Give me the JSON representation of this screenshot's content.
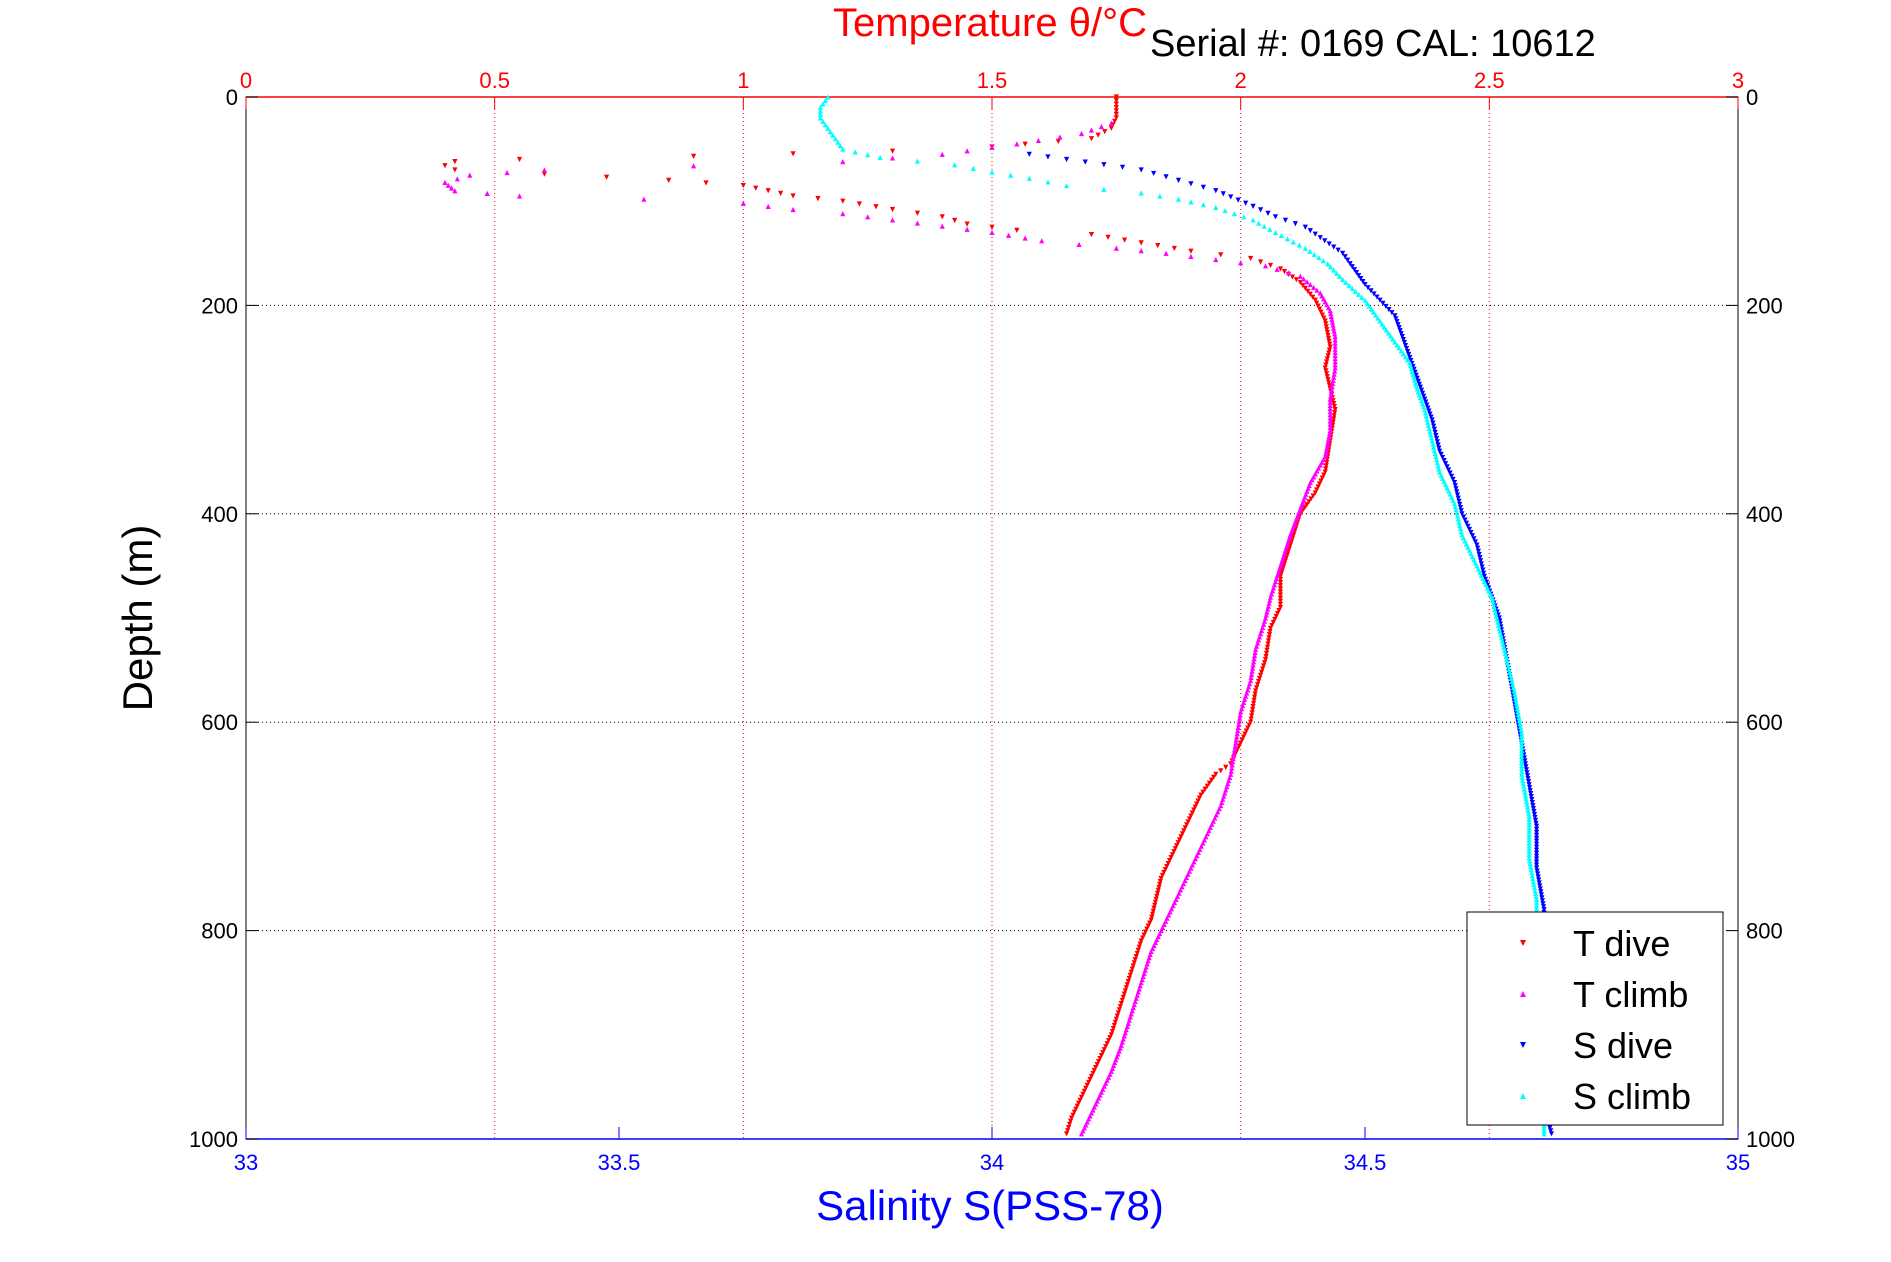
{
  "chart_data": {
    "type": "scatter",
    "title": "Temperature θ/°C",
    "annotation": "Serial #: 0169 CAL: 10612",
    "xlabel_bottom": "Salinity S(PSS-78)",
    "ylabel": "Depth (m)",
    "x_top": {
      "label": "Temperature θ/°C",
      "range": [
        0,
        3
      ],
      "ticks": [
        "0",
        "0.5",
        "1",
        "1.5",
        "2",
        "2.5",
        "3"
      ],
      "color": "#ff0000"
    },
    "x_bottom": {
      "label": "Salinity S(PSS-78)",
      "range": [
        33,
        35
      ],
      "ticks": [
        "33",
        "33.5",
        "34",
        "34.5",
        "35"
      ],
      "color": "#0000ff"
    },
    "y": {
      "range": [
        0,
        1000
      ],
      "reversed": true,
      "ticks": [
        "0",
        "200",
        "400",
        "600",
        "800",
        "1000"
      ]
    },
    "grid": true,
    "legend_placement": "bottom-right",
    "series": [
      {
        "name": "T dive",
        "axis": "temperature",
        "color": "#ff0000",
        "marker": "triangle-down",
        "points": [
          [
            1.75,
            0
          ],
          [
            1.75,
            10
          ],
          [
            1.75,
            20
          ],
          [
            1.74,
            30
          ],
          [
            1.7,
            40
          ],
          [
            1.5,
            48
          ],
          [
            1.3,
            52
          ],
          [
            0.9,
            57
          ],
          [
            0.55,
            60
          ],
          [
            0.42,
            62
          ],
          [
            0.4,
            66
          ],
          [
            0.42,
            70
          ],
          [
            0.6,
            74
          ],
          [
            0.85,
            80
          ],
          [
            1.0,
            85
          ],
          [
            1.05,
            90
          ],
          [
            1.1,
            95
          ],
          [
            1.2,
            100
          ],
          [
            1.3,
            108
          ],
          [
            1.4,
            115
          ],
          [
            1.45,
            122
          ],
          [
            1.55,
            128
          ],
          [
            1.7,
            132
          ],
          [
            1.8,
            140
          ],
          [
            1.9,
            148
          ],
          [
            2.02,
            155
          ],
          [
            2.08,
            165
          ],
          [
            2.12,
            178
          ],
          [
            2.15,
            195
          ],
          [
            2.17,
            215
          ],
          [
            2.18,
            240
          ],
          [
            2.17,
            260
          ],
          [
            2.18,
            280
          ],
          [
            2.19,
            300
          ],
          [
            2.18,
            330
          ],
          [
            2.17,
            360
          ],
          [
            2.15,
            380
          ],
          [
            2.12,
            400
          ],
          [
            2.1,
            430
          ],
          [
            2.08,
            460
          ],
          [
            2.08,
            490
          ],
          [
            2.06,
            510
          ],
          [
            2.05,
            540
          ],
          [
            2.03,
            570
          ],
          [
            2.02,
            600
          ],
          [
            2.0,
            620
          ],
          [
            1.98,
            640
          ],
          [
            1.95,
            650
          ],
          [
            1.92,
            670
          ],
          [
            1.9,
            690
          ],
          [
            1.88,
            710
          ],
          [
            1.86,
            730
          ],
          [
            1.84,
            750
          ],
          [
            1.83,
            770
          ],
          [
            1.82,
            790
          ],
          [
            1.8,
            810
          ],
          [
            1.78,
            840
          ],
          [
            1.76,
            870
          ],
          [
            1.74,
            900
          ],
          [
            1.72,
            920
          ],
          [
            1.7,
            940
          ],
          [
            1.68,
            960
          ],
          [
            1.66,
            980
          ],
          [
            1.65,
            995
          ]
        ]
      },
      {
        "name": "T climb",
        "axis": "temperature",
        "color": "#ff00ff",
        "marker": "triangle-up",
        "points": [
          [
            1.74,
            25
          ],
          [
            1.68,
            35
          ],
          [
            1.55,
            45
          ],
          [
            1.4,
            55
          ],
          [
            1.2,
            62
          ],
          [
            0.9,
            66
          ],
          [
            0.6,
            70
          ],
          [
            0.45,
            75
          ],
          [
            0.4,
            82
          ],
          [
            0.42,
            90
          ],
          [
            0.55,
            95
          ],
          [
            0.8,
            98
          ],
          [
            1.0,
            102
          ],
          [
            1.1,
            108
          ],
          [
            1.2,
            112
          ],
          [
            1.3,
            118
          ],
          [
            1.4,
            124
          ],
          [
            1.5,
            130
          ],
          [
            1.6,
            138
          ],
          [
            1.75,
            145
          ],
          [
            1.85,
            150
          ],
          [
            1.95,
            156
          ],
          [
            2.05,
            162
          ],
          [
            2.12,
            172
          ],
          [
            2.16,
            188
          ],
          [
            2.18,
            205
          ],
          [
            2.19,
            230
          ],
          [
            2.19,
            260
          ],
          [
            2.18,
            290
          ],
          [
            2.18,
            320
          ],
          [
            2.17,
            345
          ],
          [
            2.14,
            370
          ],
          [
            2.12,
            395
          ],
          [
            2.1,
            420
          ],
          [
            2.08,
            450
          ],
          [
            2.06,
            480
          ],
          [
            2.05,
            500
          ],
          [
            2.03,
            530
          ],
          [
            2.02,
            560
          ],
          [
            2.0,
            590
          ],
          [
            1.99,
            620
          ],
          [
            1.98,
            650
          ],
          [
            1.96,
            680
          ],
          [
            1.93,
            710
          ],
          [
            1.9,
            740
          ],
          [
            1.87,
            770
          ],
          [
            1.84,
            800
          ],
          [
            1.82,
            820
          ],
          [
            1.8,
            850
          ],
          [
            1.78,
            880
          ],
          [
            1.76,
            910
          ],
          [
            1.74,
            935
          ],
          [
            1.72,
            955
          ],
          [
            1.7,
            975
          ],
          [
            1.68,
            995
          ]
        ]
      },
      {
        "name": "S dive",
        "axis": "salinity",
        "color": "#0000ff",
        "marker": "triangle-down",
        "points": [
          [
            34.05,
            55
          ],
          [
            34.1,
            60
          ],
          [
            34.15,
            65
          ],
          [
            34.2,
            70
          ],
          [
            34.25,
            80
          ],
          [
            34.3,
            90
          ],
          [
            34.35,
            105
          ],
          [
            34.38,
            115
          ],
          [
            34.42,
            125
          ],
          [
            34.44,
            135
          ],
          [
            34.47,
            150
          ],
          [
            34.48,
            160
          ],
          [
            34.5,
            180
          ],
          [
            34.52,
            195
          ],
          [
            34.54,
            210
          ],
          [
            34.55,
            230
          ],
          [
            34.56,
            250
          ],
          [
            34.57,
            270
          ],
          [
            34.58,
            290
          ],
          [
            34.59,
            310
          ],
          [
            34.6,
            340
          ],
          [
            34.62,
            370
          ],
          [
            34.63,
            400
          ],
          [
            34.65,
            430
          ],
          [
            34.66,
            460
          ],
          [
            34.68,
            500
          ],
          [
            34.69,
            540
          ],
          [
            34.7,
            580
          ],
          [
            34.71,
            620
          ],
          [
            34.72,
            660
          ],
          [
            34.73,
            700
          ],
          [
            34.73,
            740
          ],
          [
            34.74,
            780
          ],
          [
            34.74,
            820
          ],
          [
            34.74,
            860
          ],
          [
            34.74,
            900
          ],
          [
            34.74,
            940
          ],
          [
            34.74,
            970
          ],
          [
            34.75,
            995
          ]
        ]
      },
      {
        "name": "S climb",
        "axis": "salinity",
        "color": "#00ffff",
        "marker": "triangle-up",
        "points": [
          [
            33.78,
            0
          ],
          [
            33.77,
            10
          ],
          [
            33.77,
            20
          ],
          [
            33.78,
            30
          ],
          [
            33.79,
            40
          ],
          [
            33.8,
            50
          ],
          [
            33.85,
            58
          ],
          [
            33.95,
            65
          ],
          [
            34.0,
            72
          ],
          [
            34.05,
            78
          ],
          [
            34.1,
            85
          ],
          [
            34.2,
            92
          ],
          [
            34.25,
            98
          ],
          [
            34.3,
            106
          ],
          [
            34.35,
            118
          ],
          [
            34.38,
            130
          ],
          [
            34.42,
            145
          ],
          [
            34.45,
            160
          ],
          [
            34.47,
            175
          ],
          [
            34.5,
            195
          ],
          [
            34.52,
            215
          ],
          [
            34.54,
            235
          ],
          [
            34.56,
            255
          ],
          [
            34.57,
            280
          ],
          [
            34.58,
            300
          ],
          [
            34.59,
            330
          ],
          [
            34.6,
            360
          ],
          [
            34.62,
            390
          ],
          [
            34.63,
            420
          ],
          [
            34.65,
            450
          ],
          [
            34.67,
            480
          ],
          [
            34.68,
            510
          ],
          [
            34.69,
            540
          ],
          [
            34.7,
            570
          ],
          [
            34.71,
            610
          ],
          [
            34.71,
            650
          ],
          [
            34.72,
            690
          ],
          [
            34.72,
            730
          ],
          [
            34.73,
            770
          ],
          [
            34.73,
            810
          ],
          [
            34.73,
            850
          ],
          [
            34.73,
            890
          ],
          [
            34.74,
            930
          ],
          [
            34.74,
            970
          ],
          [
            34.74,
            995
          ]
        ]
      }
    ]
  }
}
